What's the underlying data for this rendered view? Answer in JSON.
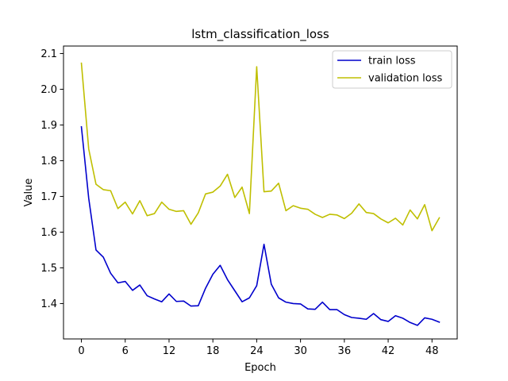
{
  "chart_data": {
    "type": "line",
    "title": "lstm_classification_loss",
    "xlabel": "Epoch",
    "ylabel": "Value",
    "xlim": [
      -2.45,
      51.45
    ],
    "ylim": [
      1.301,
      2.121
    ],
    "xticks": [
      0,
      6,
      12,
      18,
      24,
      30,
      36,
      42,
      48
    ],
    "yticks": [
      1.4,
      1.5,
      1.6,
      1.7,
      1.8,
      1.9,
      2.0,
      2.1
    ],
    "ytick_labels": [
      "1.4",
      "1.5",
      "1.6",
      "1.7",
      "1.8",
      "1.9",
      "2.0",
      "2.1"
    ],
    "grid": false,
    "legend_position": "top-right",
    "x": [
      0,
      1,
      2,
      3,
      4,
      5,
      6,
      7,
      8,
      9,
      10,
      11,
      12,
      13,
      14,
      15,
      16,
      17,
      18,
      19,
      20,
      21,
      22,
      23,
      24,
      25,
      26,
      27,
      28,
      29,
      30,
      31,
      32,
      33,
      34,
      35,
      36,
      37,
      38,
      39,
      40,
      41,
      42,
      43,
      44,
      45,
      46,
      47,
      48,
      49
    ],
    "series": [
      {
        "name": "train loss",
        "color": "#0000cc",
        "values": [
          1.895,
          1.695,
          1.55,
          1.53,
          1.485,
          1.458,
          1.462,
          1.437,
          1.452,
          1.422,
          1.413,
          1.405,
          1.427,
          1.406,
          1.407,
          1.393,
          1.394,
          1.443,
          1.482,
          1.507,
          1.467,
          1.436,
          1.405,
          1.416,
          1.45,
          1.566,
          1.454,
          1.416,
          1.404,
          1.4,
          1.399,
          1.385,
          1.384,
          1.404,
          1.383,
          1.383,
          1.369,
          1.361,
          1.359,
          1.356,
          1.372,
          1.355,
          1.35,
          1.366,
          1.359,
          1.347,
          1.339,
          1.36,
          1.356,
          1.348
        ]
      },
      {
        "name": "validation loss",
        "color": "#bfbf00",
        "values": [
          2.073,
          1.833,
          1.734,
          1.719,
          1.716,
          1.666,
          1.684,
          1.651,
          1.688,
          1.646,
          1.652,
          1.684,
          1.664,
          1.658,
          1.66,
          1.622,
          1.654,
          1.707,
          1.712,
          1.729,
          1.762,
          1.697,
          1.726,
          1.652,
          2.063,
          1.713,
          1.715,
          1.737,
          1.66,
          1.674,
          1.667,
          1.664,
          1.65,
          1.641,
          1.65,
          1.648,
          1.638,
          1.653,
          1.679,
          1.655,
          1.652,
          1.637,
          1.626,
          1.639,
          1.62,
          1.662,
          1.637,
          1.677,
          1.604,
          1.64
        ]
      }
    ]
  }
}
